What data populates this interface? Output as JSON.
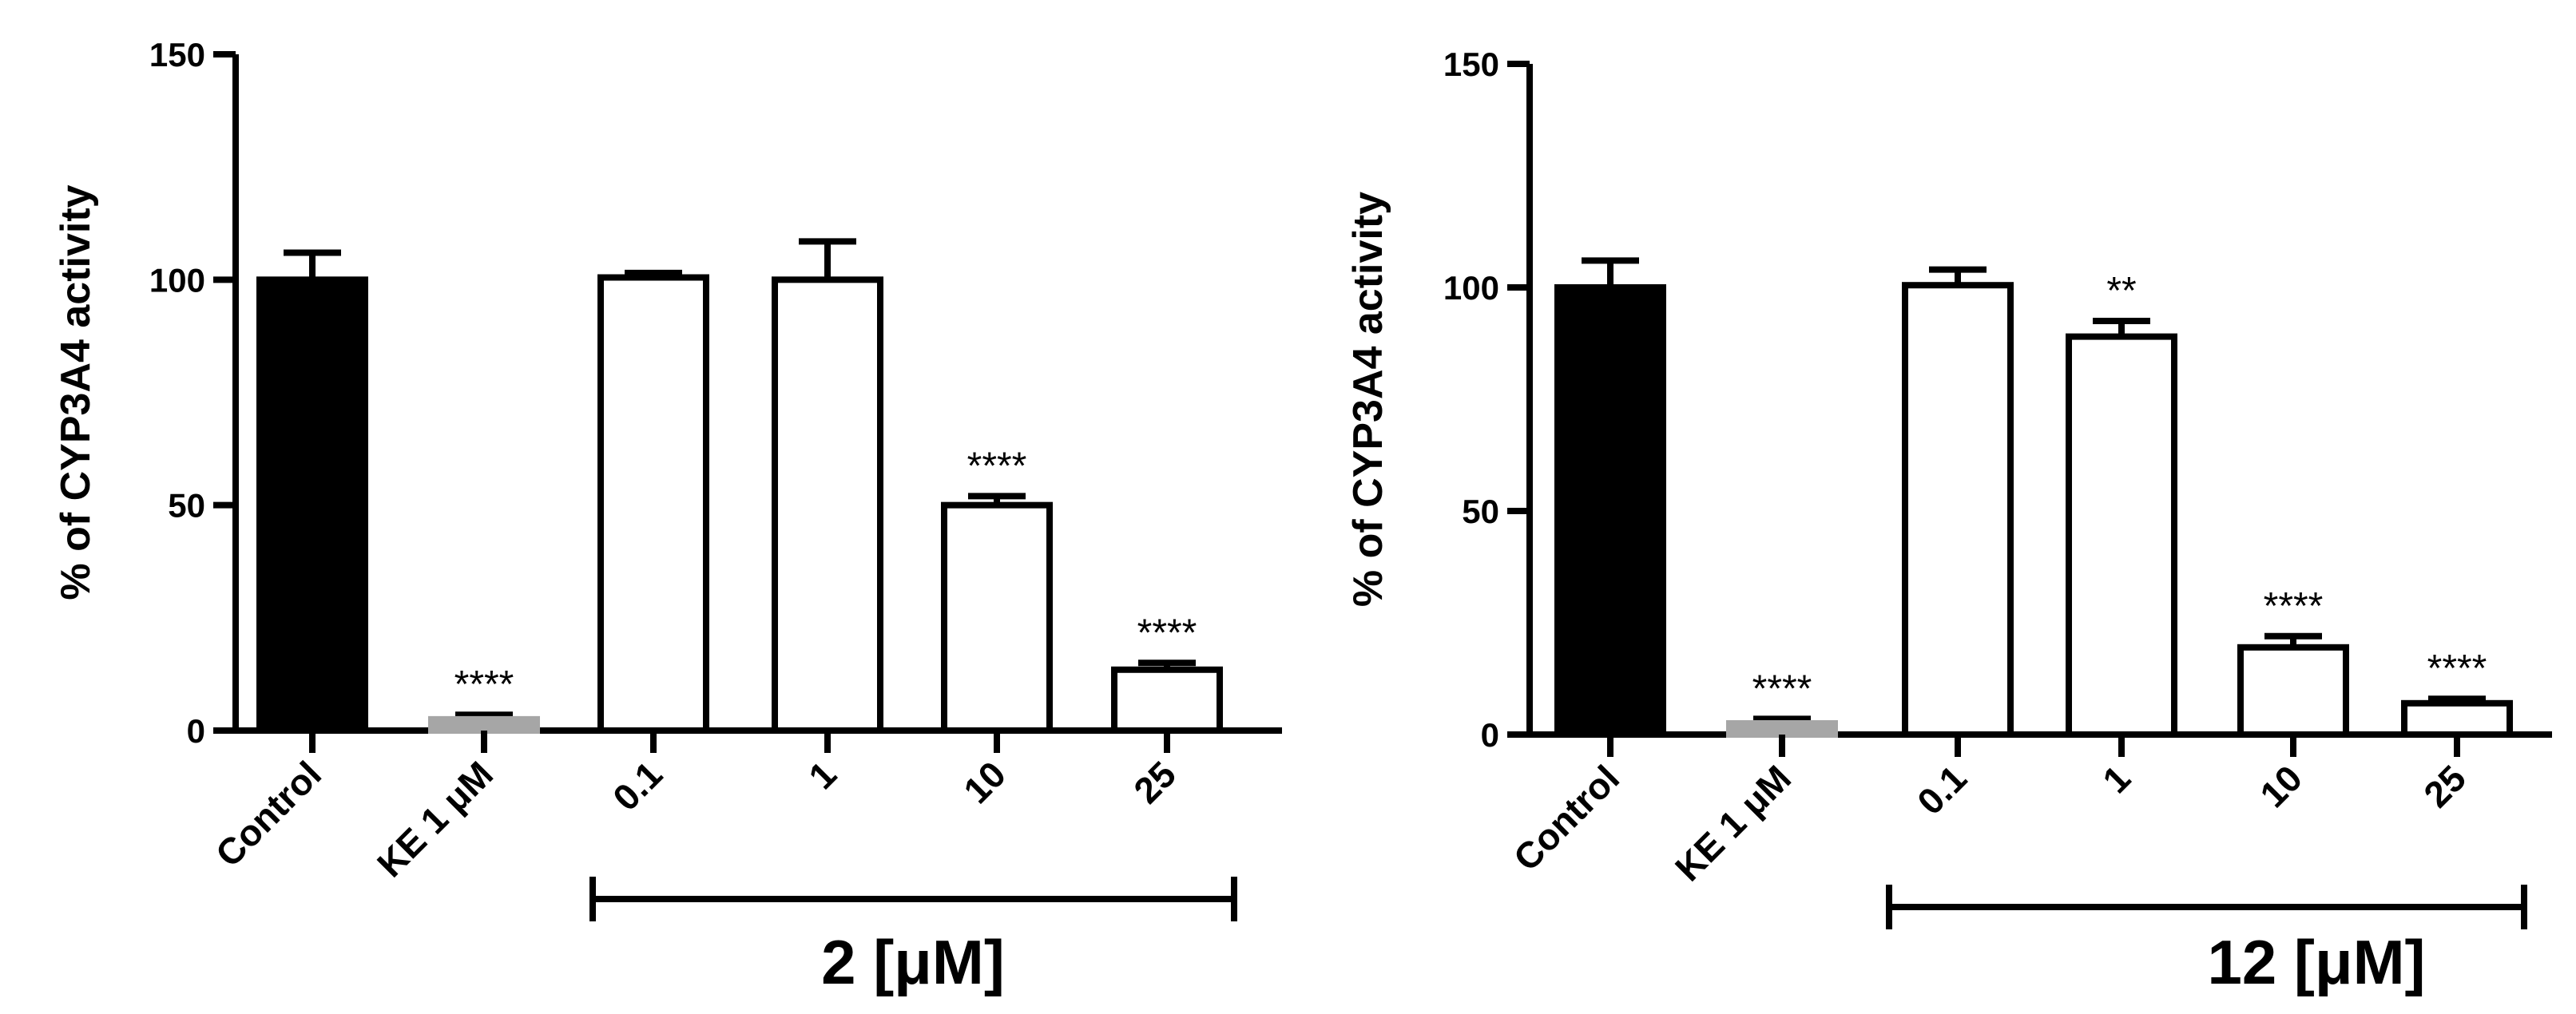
{
  "chart_data": [
    {
      "type": "bar",
      "ylabel": "% of CYP3A4 activity",
      "ylim": [
        0,
        150
      ],
      "yticks": [
        0,
        50,
        100,
        150
      ],
      "categories": [
        "Control",
        "KE 1 μM",
        "0.1",
        "1",
        "10",
        "25"
      ],
      "values": [
        100,
        2.5,
        100.5,
        100,
        50,
        13.5
      ],
      "errors": [
        6,
        1,
        1,
        8.5,
        2,
        1.5
      ],
      "significance": [
        "",
        "****",
        "",
        "",
        "****",
        "****"
      ],
      "bar_styles": [
        "filled-black",
        "filled-gray",
        "hollow",
        "hollow",
        "hollow",
        "hollow"
      ],
      "group_label": "2 [μM]",
      "group_span": [
        "0.1",
        "25"
      ]
    },
    {
      "type": "bar",
      "ylabel": "% of CYP3A4 activity",
      "ylim": [
        0,
        150
      ],
      "yticks": [
        0,
        50,
        100,
        150
      ],
      "categories": [
        "Control",
        "KE 1 μM",
        "0.1",
        "1",
        "10",
        "25"
      ],
      "values": [
        100,
        2.5,
        100.5,
        89,
        19.5,
        7
      ],
      "errors": [
        6,
        1,
        3.5,
        3.5,
        2.5,
        1
      ],
      "significance": [
        "",
        "****",
        "",
        "**",
        "****",
        "****"
      ],
      "bar_styles": [
        "filled-black",
        "filled-gray",
        "hollow",
        "hollow",
        "hollow",
        "hollow"
      ],
      "group_label": "12 [μM]",
      "group_span": [
        "0.1",
        "25"
      ]
    }
  ]
}
